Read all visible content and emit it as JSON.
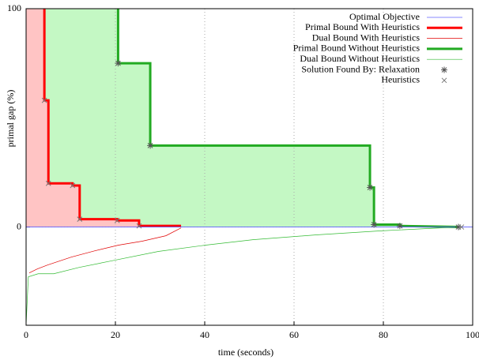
{
  "chart_data": {
    "type": "line",
    "xlabel": "time (seconds)",
    "ylabel": "primal gap (%)",
    "xlim": [
      0,
      100
    ],
    "xticks": [
      0,
      20,
      40,
      60,
      80,
      100
    ],
    "ylim": [
      -45,
      100
    ],
    "yticks": [
      0,
      100
    ],
    "grid": true,
    "series": [
      {
        "name": "Optimal Objective",
        "color": "#6060ff",
        "width": 0.8,
        "style": "line",
        "x": [
          0,
          100
        ],
        "values": [
          0,
          0
        ]
      },
      {
        "name": "Primal Bound With Heuristics",
        "color": "#ff0000",
        "width": 3,
        "style": "line",
        "fill": "#ffc4c4",
        "x": [
          4.1,
          4.1,
          5,
          5,
          10.4,
          10.4,
          12,
          12,
          20.4,
          20.4,
          25.3,
          25.3,
          34.7
        ],
        "values": [
          100,
          58,
          58,
          20,
          20,
          19,
          19,
          3.6,
          3.6,
          3,
          3,
          0.5,
          0.5
        ]
      },
      {
        "name": "Dual Bound With Heuristics",
        "color": "#e00000",
        "width": 0.7,
        "style": "line",
        "x": [
          0.7,
          2.5,
          4.8,
          10.1,
          15.4,
          20.7,
          26,
          31.3,
          34.7
        ],
        "values": [
          -21,
          -19.2,
          -17.4,
          -13.8,
          -10.9,
          -8.3,
          -6.5,
          -4,
          -0.4
        ]
      },
      {
        "name": "Primal Bound Without Heuristics",
        "color": "#22aa22",
        "width": 3,
        "style": "line",
        "fill": "#c4f8c4",
        "x": [
          20.6,
          20.6,
          27.8,
          27.8,
          77,
          77,
          77.9,
          77.9,
          83.7,
          83.7,
          96.8
        ],
        "values": [
          100,
          75,
          75,
          37.3,
          37.3,
          18.1,
          18.1,
          1.1,
          1.1,
          0.5,
          0
        ]
      },
      {
        "name": "Dual Bound Without Heuristics",
        "color": "#33bb33",
        "width": 0.7,
        "style": "line",
        "x": [
          0,
          0.5,
          2.7,
          6.2,
          11.9,
          18.9,
          29.6,
          40.2,
          50.8,
          65,
          79.1,
          96.8
        ],
        "values": [
          -45,
          -22.8,
          -21.4,
          -21.4,
          -18.5,
          -15.6,
          -11.2,
          -8.3,
          -5.8,
          -3.6,
          -1.8,
          0
        ]
      },
      {
        "name": "Solution Found By: Relaxation",
        "color": "#555555",
        "marker": "star",
        "style": "scatter",
        "x": [
          20.6,
          27.8,
          77,
          77.9,
          83.7,
          96.8
        ],
        "values": [
          75,
          37.3,
          18.1,
          1.1,
          0.5,
          0
        ]
      },
      {
        "name": "Heuristics",
        "color": "#777777",
        "marker": "cross",
        "style": "scatter",
        "x": [
          4.1,
          5,
          10.4,
          12,
          20.4,
          25.3,
          97.5
        ],
        "values": [
          58,
          20,
          19,
          3.6,
          3,
          0.5,
          0
        ]
      }
    ]
  }
}
